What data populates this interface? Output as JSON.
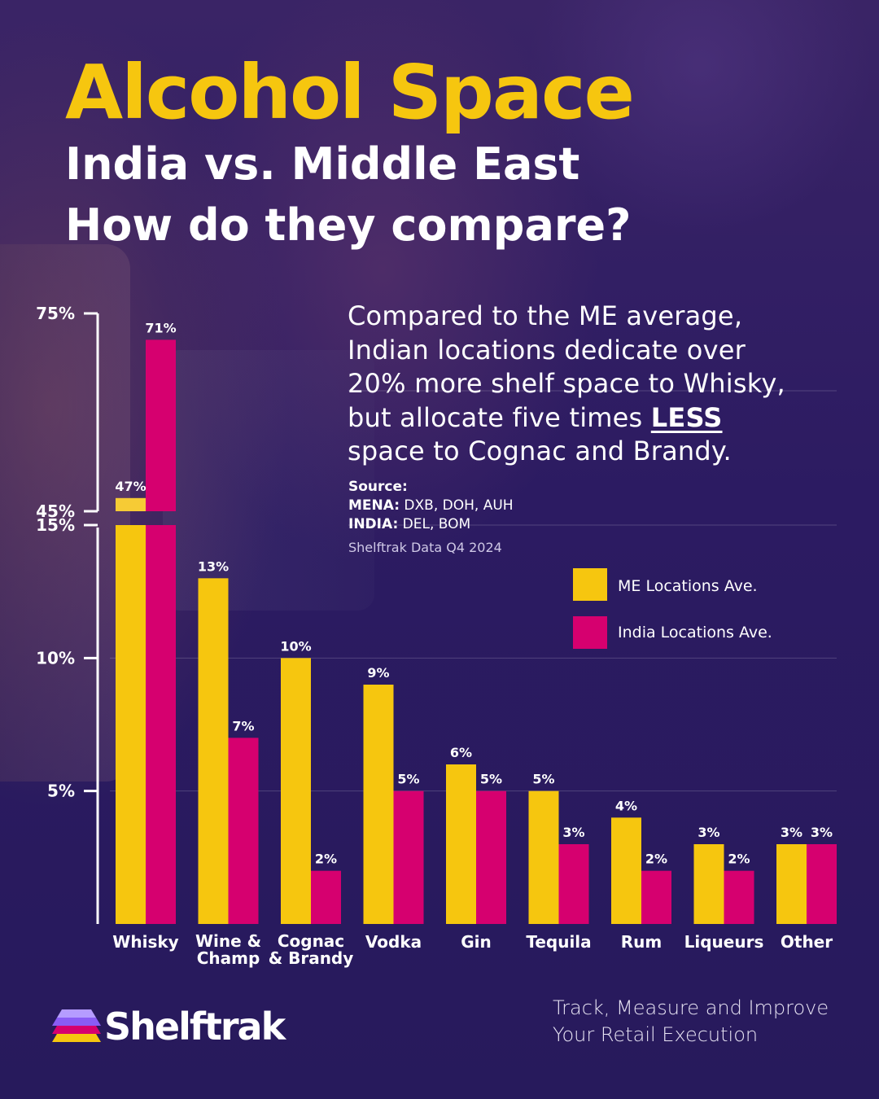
{
  "header": {
    "title": "Alcohol Space",
    "subtitle_line1": "India vs. Middle East",
    "subtitle_line2": "How do they compare?"
  },
  "description": {
    "line1": "Compared to the ME average,",
    "line2": "Indian locations dedicate over",
    "line3": "20% more shelf space to Whisky,",
    "line4_pre": "but allocate five times ",
    "line4_emph": "LESS",
    "line5": "space to Cognac and Brandy."
  },
  "source": {
    "heading": "Source:",
    "mena_label": "MENA:",
    "mena_value": " DXB, DOH, AUH",
    "india_label": "INDIA:",
    "india_value": " DEL, BOM",
    "data_note": "Shelftrak Data Q4 2024"
  },
  "legend": {
    "me_label": "ME Locations Ave.",
    "india_label": "India Locations Ave."
  },
  "colors": {
    "me": "#f6c60f",
    "india": "#d6006f",
    "whisky_me_top": "#f6cb35"
  },
  "chart_data": {
    "type": "bar",
    "categories": [
      [
        "Whisky"
      ],
      [
        "Wine &",
        "Champ"
      ],
      [
        "Cognac",
        "& Brandy"
      ],
      [
        "Vodka"
      ],
      [
        "Gin"
      ],
      [
        "Tequila"
      ],
      [
        "Rum"
      ],
      [
        "Liqueurs"
      ],
      [
        "Other"
      ]
    ],
    "series": [
      {
        "name": "ME Locations Ave.",
        "values": [
          47,
          13,
          10,
          9,
          6,
          5,
          4,
          3,
          3
        ],
        "labels": [
          "47%",
          "13%",
          "10%",
          "9%",
          "6%",
          "5%",
          "4%",
          "3%",
          "3%"
        ]
      },
      {
        "name": "India Locations Ave.",
        "values": [
          71,
          7,
          2,
          5,
          5,
          3,
          2,
          2,
          3
        ],
        "labels": [
          "71%",
          "7%",
          "2%",
          "5%",
          "5%",
          "3%",
          "2%",
          "2%",
          "3%"
        ]
      }
    ],
    "yaxis_lower": {
      "range": [
        0,
        15
      ],
      "ticks": [
        5,
        10,
        15
      ],
      "tick_labels": [
        "5%",
        "10%",
        "15%"
      ]
    },
    "yaxis_upper": {
      "range": [
        45,
        75
      ],
      "ticks": [
        45,
        75
      ],
      "tick_labels": [
        "45%",
        "75%"
      ]
    },
    "axis_break": true,
    "grid": true,
    "legend_position": "right"
  },
  "footer": {
    "brand": "Shelftrak",
    "tagline_line1": "Track, Measure and Improve",
    "tagline_line2": "Your Retail Execution"
  }
}
